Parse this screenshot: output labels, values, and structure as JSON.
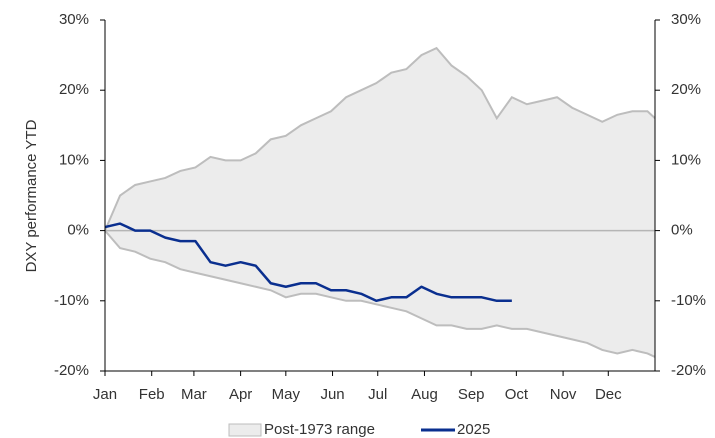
{
  "chart_data": {
    "type": "band-line",
    "y_label": "DXY performance YTD",
    "x": [
      0,
      10,
      20,
      30,
      40,
      50,
      60,
      70,
      80,
      90,
      100,
      110,
      120,
      130,
      140,
      150,
      160,
      170,
      180,
      190,
      200,
      210,
      220,
      230,
      240,
      250,
      260,
      270,
      280,
      290,
      300,
      310,
      320,
      330,
      340,
      350,
      360,
      365
    ],
    "xlim": [
      0,
      365
    ],
    "xticks": [
      {
        "value": 0,
        "label": "Jan"
      },
      {
        "value": 31,
        "label": "Feb"
      },
      {
        "value": 59,
        "label": "Mar"
      },
      {
        "value": 90,
        "label": "Apr"
      },
      {
        "value": 120,
        "label": "May"
      },
      {
        "value": 151,
        "label": "Jun"
      },
      {
        "value": 181,
        "label": "Jul"
      },
      {
        "value": 212,
        "label": "Aug"
      },
      {
        "value": 243,
        "label": "Sep"
      },
      {
        "value": 273,
        "label": "Oct"
      },
      {
        "value": 304,
        "label": "Nov"
      },
      {
        "value": 334,
        "label": "Dec"
      }
    ],
    "ylim": [
      -20,
      30
    ],
    "yticks": [
      {
        "value": -20,
        "label": "-20%"
      },
      {
        "value": -10,
        "label": "-10%"
      },
      {
        "value": 0,
        "label": "0%"
      },
      {
        "value": 10,
        "label": "10%"
      },
      {
        "value": 20,
        "label": "20%"
      },
      {
        "value": 30,
        "label": "30%"
      }
    ],
    "y2lim": [
      -20,
      30
    ],
    "y2ticks": [
      {
        "value": -20,
        "label": "-20%"
      },
      {
        "value": -10,
        "label": "-10%"
      },
      {
        "value": 0,
        "label": "0%"
      },
      {
        "value": 10,
        "label": "10%"
      },
      {
        "value": 20,
        "label": "20%"
      },
      {
        "value": 30,
        "label": "30%"
      }
    ],
    "legend": "bottom",
    "series": [
      {
        "name": "Post-1973 range",
        "color": "#bdbdbd",
        "fill": "#ececec",
        "upper": [
          0,
          5,
          6.5,
          7,
          7.5,
          8.5,
          9,
          10.5,
          10,
          10,
          11,
          13,
          13.5,
          15,
          16,
          17,
          19,
          20,
          21,
          22.5,
          23,
          25,
          26,
          23.5,
          22,
          20,
          16,
          19,
          18,
          18.5,
          19,
          17.5,
          16.5,
          15.5,
          16.5,
          17,
          17,
          16
        ],
        "lower": [
          0,
          -2.5,
          -3,
          -4,
          -4.5,
          -5.5,
          -6,
          -6.5,
          -7,
          -7.5,
          -8,
          -8.5,
          -9.5,
          -9,
          -9,
          -9.5,
          -10,
          -10,
          -10.5,
          -11,
          -11.5,
          -12.5,
          -13.5,
          -13.5,
          -14,
          -14,
          -13.5,
          -14,
          -14,
          -14.5,
          -15,
          -15.5,
          -16,
          -17,
          -17.5,
          -17,
          -17.5,
          -18
        ]
      },
      {
        "name": "2025",
        "color": "#0a2f8f",
        "values": [
          0.5,
          1,
          0,
          0,
          -1,
          -1.5,
          -1.5,
          -4.5,
          -5,
          -4.5,
          -5,
          -7.5,
          -8,
          -7.5,
          -7.5,
          -8.5,
          -8.5,
          -9,
          -10,
          -9.5,
          -9.5,
          -8,
          -9,
          -9.5,
          -9.5,
          -9.5,
          -10,
          -10,
          null,
          null,
          null,
          null,
          null,
          null,
          null,
          null,
          null,
          null
        ]
      }
    ]
  }
}
